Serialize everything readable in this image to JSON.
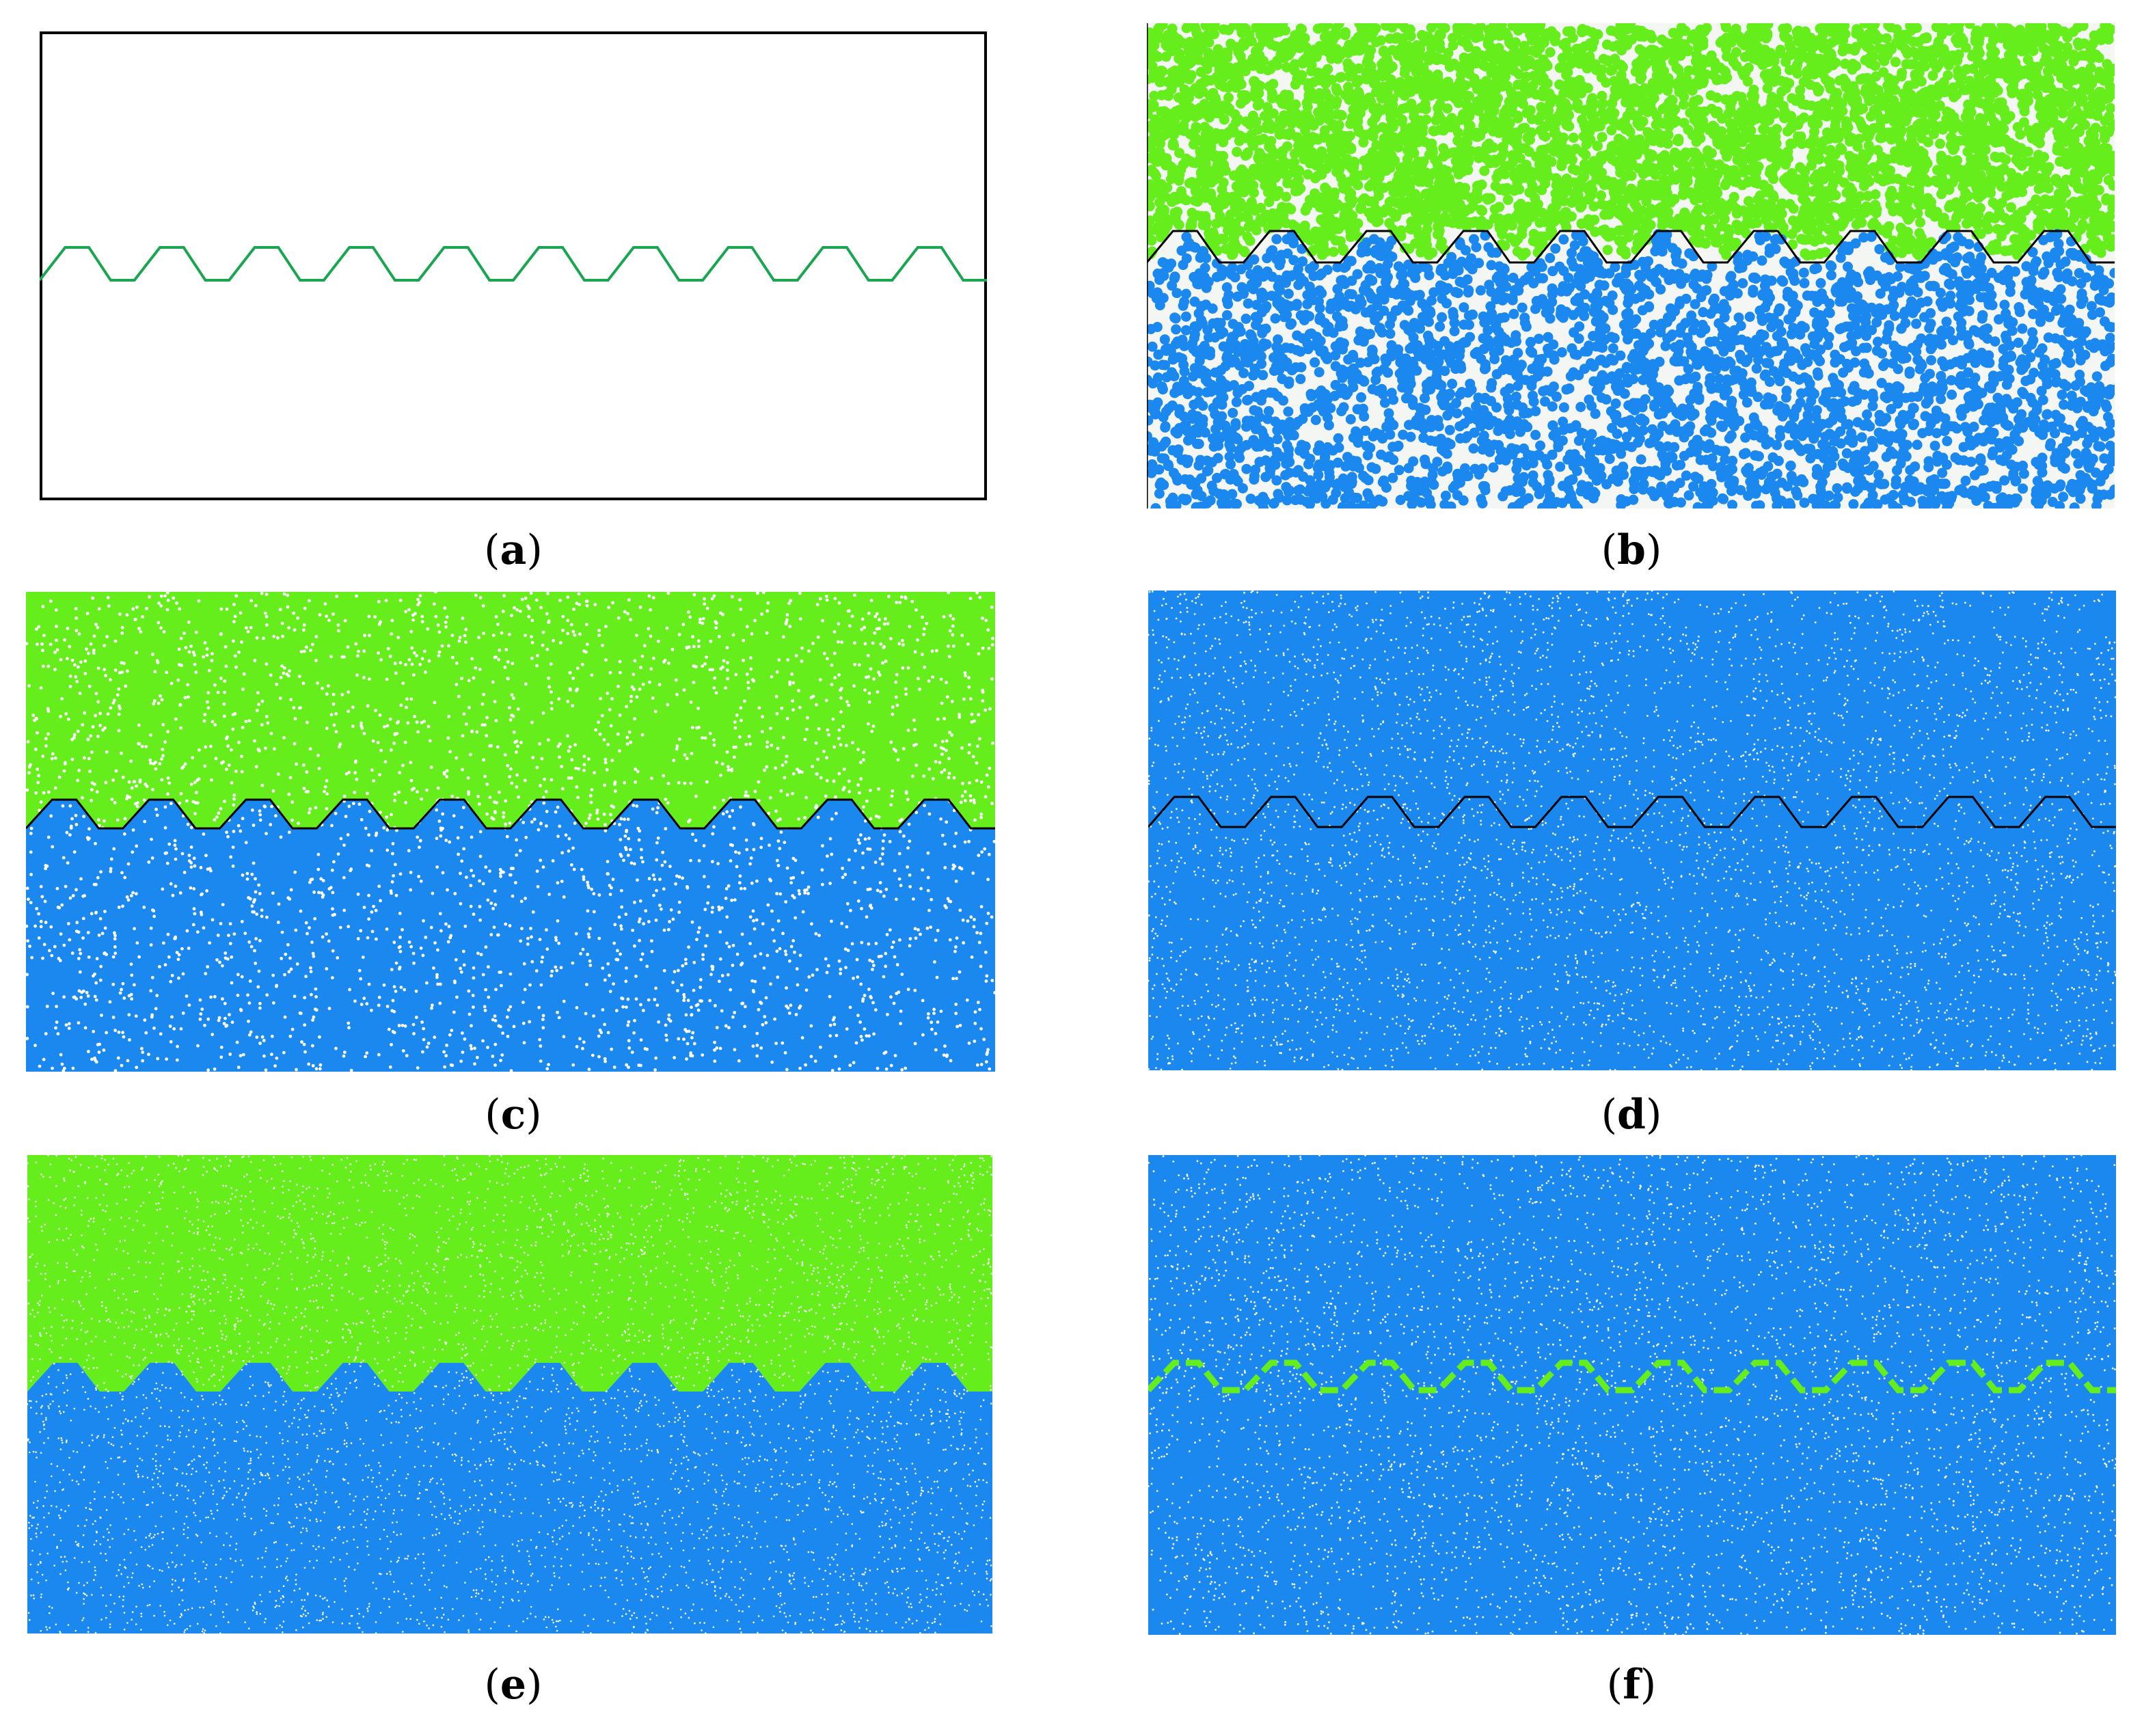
{
  "colors": {
    "upper_particles": "#66ee1c",
    "lower_particles": "#1a88ee",
    "joint_line_sketch": "#1aa650",
    "joint_line": "#000000",
    "frame": "#000000"
  },
  "panels": [
    {
      "id": "a",
      "label": "a",
      "kind": "sketch"
    },
    {
      "id": "b",
      "label": "b",
      "kind": "coarse"
    },
    {
      "id": "c",
      "label": "c",
      "kind": "dense-two-color"
    },
    {
      "id": "d",
      "label": "d",
      "kind": "dense-blue-with-joint"
    },
    {
      "id": "e",
      "label": "e",
      "kind": "fine-two-color"
    },
    {
      "id": "f",
      "label": "f",
      "kind": "fine-blue-with-green-band"
    }
  ],
  "joint_profile": {
    "teeth_count": 10
  }
}
